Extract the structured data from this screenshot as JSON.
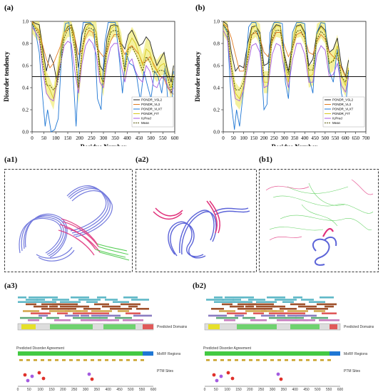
{
  "figure": {
    "panel_labels": {
      "a": "(a)",
      "b": "(b)",
      "a1": "(a1)",
      "a2": "(a2)",
      "b1": "(b1)",
      "a3": "(a3)",
      "b2": "(b2)"
    }
  },
  "chart_data": [
    {
      "id": "a",
      "type": "line",
      "xlabel": "Residue Number",
      "ylabel": "Disorder tendency",
      "xlim": [
        0,
        600
      ],
      "ylim": [
        0.0,
        1.0
      ],
      "xticks": [
        0,
        50,
        100,
        150,
        200,
        250,
        300,
        350,
        400,
        450,
        500,
        550,
        600
      ],
      "yticks": [
        0.0,
        0.2,
        0.4,
        0.6,
        0.8,
        1.0
      ],
      "threshold": 0.5,
      "legend_position": "bottom-right",
      "series": [
        {
          "name": "PONDR_VSL2",
          "color": "#222222",
          "x": [
            0,
            15,
            30,
            45,
            60,
            75,
            90,
            105,
            120,
            135,
            150,
            165,
            180,
            195,
            210,
            225,
            240,
            255,
            270,
            285,
            300,
            315,
            330,
            345,
            360,
            375,
            390,
            405,
            420,
            435,
            450,
            465,
            480,
            495,
            510,
            525,
            540,
            555,
            570,
            585,
            595
          ],
          "y": [
            1.0,
            0.98,
            0.97,
            0.75,
            0.55,
            0.7,
            0.62,
            0.45,
            0.72,
            0.9,
            0.95,
            0.97,
            0.85,
            0.58,
            0.88,
            0.97,
            0.98,
            0.97,
            0.9,
            0.6,
            0.55,
            0.85,
            0.96,
            0.97,
            0.96,
            0.8,
            0.75,
            0.88,
            0.92,
            0.85,
            0.78,
            0.8,
            0.86,
            0.82,
            0.7,
            0.6,
            0.66,
            0.72,
            0.55,
            0.45,
            0.6
          ]
        },
        {
          "name": "PONDR_VL3",
          "color": "#e07b22",
          "x": [
            0,
            15,
            30,
            45,
            60,
            75,
            90,
            105,
            120,
            135,
            150,
            165,
            180,
            195,
            210,
            225,
            240,
            255,
            270,
            285,
            300,
            315,
            330,
            345,
            360,
            375,
            390,
            405,
            420,
            435,
            450,
            465,
            480,
            495,
            510,
            525,
            540,
            555,
            570,
            585,
            595
          ],
          "y": [
            1.0,
            0.95,
            0.9,
            0.78,
            0.66,
            0.58,
            0.62,
            0.7,
            0.78,
            0.9,
            0.92,
            0.95,
            0.85,
            0.7,
            0.74,
            0.86,
            0.92,
            0.9,
            0.78,
            0.72,
            0.68,
            0.72,
            0.82,
            0.88,
            0.88,
            0.78,
            0.7,
            0.76,
            0.78,
            0.74,
            0.7,
            0.62,
            0.64,
            0.68,
            0.62,
            0.56,
            0.5,
            0.48,
            0.4,
            0.36,
            0.34
          ]
        },
        {
          "name": "PONDR_VLXT",
          "color": "#1f77d4",
          "x": [
            0,
            15,
            30,
            45,
            55,
            65,
            80,
            95,
            110,
            125,
            140,
            155,
            170,
            185,
            200,
            215,
            230,
            245,
            260,
            275,
            290,
            305,
            320,
            335,
            350,
            365,
            380,
            395,
            410,
            425,
            440,
            455,
            470,
            485,
            500,
            515,
            530,
            545,
            560,
            575,
            585,
            595
          ],
          "y": [
            0.98,
            0.9,
            0.72,
            0.3,
            0.05,
            0.2,
            0.0,
            0.02,
            0.12,
            0.75,
            0.98,
            0.99,
            0.6,
            0.05,
            0.75,
            0.99,
            0.99,
            0.99,
            0.95,
            0.3,
            0.2,
            0.8,
            0.99,
            0.99,
            0.99,
            0.7,
            0.35,
            0.72,
            0.62,
            0.6,
            0.5,
            0.28,
            0.55,
            0.42,
            0.3,
            0.55,
            0.5,
            0.35,
            0.6,
            0.15,
            0.05,
            0.55
          ]
        },
        {
          "name": "PONDR_FIT",
          "color": "#d6c71c",
          "x": [
            0,
            15,
            30,
            45,
            60,
            75,
            90,
            105,
            120,
            135,
            150,
            165,
            180,
            195,
            210,
            225,
            240,
            255,
            270,
            285,
            300,
            315,
            330,
            345,
            360,
            375,
            390,
            405,
            420,
            435,
            450,
            465,
            480,
            495,
            510,
            525,
            540,
            555,
            570,
            585,
            595
          ],
          "y": [
            0.99,
            0.95,
            0.92,
            0.7,
            0.45,
            0.38,
            0.3,
            0.5,
            0.7,
            0.9,
            0.96,
            0.96,
            0.8,
            0.35,
            0.7,
            0.93,
            0.97,
            0.96,
            0.9,
            0.55,
            0.42,
            0.75,
            0.93,
            0.96,
            0.95,
            0.8,
            0.55,
            0.78,
            0.85,
            0.8,
            0.7,
            0.6,
            0.75,
            0.72,
            0.6,
            0.55,
            0.6,
            0.62,
            0.5,
            0.4,
            0.52
          ]
        },
        {
          "name": "IUPred",
          "color": "#a45be0",
          "x": [
            0,
            15,
            30,
            45,
            60,
            75,
            90,
            105,
            120,
            135,
            150,
            165,
            180,
            195,
            210,
            225,
            240,
            255,
            270,
            285,
            300,
            315,
            330,
            345,
            360,
            375,
            390,
            405,
            420,
            435,
            450,
            465,
            480,
            495,
            510,
            525,
            540,
            555,
            570,
            585,
            595
          ],
          "y": [
            0.95,
            0.9,
            0.85,
            0.55,
            0.35,
            0.3,
            0.28,
            0.45,
            0.62,
            0.78,
            0.82,
            0.8,
            0.55,
            0.35,
            0.62,
            0.78,
            0.84,
            0.8,
            0.7,
            0.45,
            0.4,
            0.62,
            0.76,
            0.8,
            0.8,
            0.6,
            0.45,
            0.62,
            0.66,
            0.55,
            0.48,
            0.45,
            0.6,
            0.55,
            0.42,
            0.4,
            0.48,
            0.5,
            0.42,
            0.35,
            0.4
          ]
        },
        {
          "name": "Mean",
          "color": "#5a5a10",
          "dashed": true,
          "x": [
            0,
            15,
            30,
            45,
            60,
            75,
            90,
            105,
            120,
            135,
            150,
            165,
            180,
            195,
            210,
            225,
            240,
            255,
            270,
            285,
            300,
            315,
            330,
            345,
            360,
            375,
            390,
            405,
            420,
            435,
            450,
            465,
            480,
            495,
            510,
            525,
            540,
            555,
            570,
            585,
            595
          ],
          "y": [
            0.98,
            0.93,
            0.88,
            0.62,
            0.42,
            0.42,
            0.38,
            0.42,
            0.6,
            0.85,
            0.93,
            0.94,
            0.74,
            0.4,
            0.74,
            0.92,
            0.94,
            0.93,
            0.85,
            0.52,
            0.45,
            0.75,
            0.9,
            0.92,
            0.91,
            0.74,
            0.55,
            0.75,
            0.77,
            0.71,
            0.64,
            0.55,
            0.68,
            0.64,
            0.54,
            0.54,
            0.56,
            0.55,
            0.5,
            0.35,
            0.5
          ]
        }
      ]
    },
    {
      "id": "b",
      "type": "line",
      "xlabel": "Residue Number",
      "ylabel": "Disorder tendency",
      "xlim": [
        0,
        700
      ],
      "ylim": [
        0.0,
        1.0
      ],
      "xticks": [
        0,
        50,
        100,
        150,
        200,
        250,
        300,
        350,
        400,
        450,
        500,
        550,
        600,
        650,
        700
      ],
      "yticks": [
        0.0,
        0.2,
        0.4,
        0.6,
        0.8,
        1.0
      ],
      "threshold": 0.5,
      "legend_position": "bottom-right",
      "series": [
        {
          "name": "PONDR_VSL2",
          "color": "#222222",
          "x": [
            0,
            20,
            40,
            60,
            80,
            100,
            120,
            140,
            160,
            180,
            200,
            220,
            240,
            260,
            280,
            300,
            320,
            340,
            360,
            380,
            400,
            420,
            440,
            460,
            480,
            500,
            520,
            540,
            560,
            580,
            600,
            615
          ],
          "y": [
            1.0,
            0.97,
            0.72,
            0.55,
            0.6,
            0.58,
            0.8,
            0.95,
            0.96,
            0.9,
            0.6,
            0.62,
            0.92,
            0.97,
            0.96,
            0.7,
            0.55,
            0.8,
            0.96,
            0.97,
            0.9,
            0.6,
            0.66,
            0.9,
            0.96,
            0.92,
            0.72,
            0.75,
            0.85,
            0.6,
            0.5,
            0.65
          ]
        },
        {
          "name": "PONDR_VL3",
          "color": "#e07b22",
          "x": [
            0,
            20,
            40,
            60,
            80,
            100,
            120,
            140,
            160,
            180,
            200,
            220,
            240,
            260,
            280,
            300,
            320,
            340,
            360,
            380,
            400,
            420,
            440,
            460,
            480,
            500,
            520,
            540,
            560,
            580,
            600,
            615
          ],
          "y": [
            0.98,
            0.95,
            0.85,
            0.7,
            0.55,
            0.55,
            0.7,
            0.88,
            0.9,
            0.85,
            0.72,
            0.68,
            0.82,
            0.9,
            0.9,
            0.78,
            0.68,
            0.76,
            0.88,
            0.9,
            0.85,
            0.72,
            0.7,
            0.82,
            0.88,
            0.84,
            0.72,
            0.68,
            0.66,
            0.58,
            0.5,
            0.48
          ]
        },
        {
          "name": "PONDR_VLXT",
          "color": "#1f77d4",
          "x": [
            0,
            20,
            40,
            55,
            65,
            80,
            95,
            110,
            125,
            140,
            160,
            180,
            200,
            215,
            230,
            250,
            270,
            290,
            305,
            320,
            340,
            360,
            380,
            400,
            420,
            440,
            460,
            480,
            500,
            520,
            540,
            560,
            580,
            600,
            615
          ],
          "y": [
            0.97,
            0.9,
            0.25,
            0.02,
            0.2,
            0.05,
            0.3,
            0.6,
            0.95,
            0.99,
            0.99,
            0.8,
            0.2,
            0.25,
            0.9,
            0.99,
            0.99,
            0.98,
            0.45,
            0.3,
            0.9,
            0.99,
            0.99,
            0.98,
            0.5,
            0.35,
            0.9,
            0.99,
            0.98,
            0.55,
            0.45,
            0.75,
            0.35,
            0.2,
            0.55
          ]
        },
        {
          "name": "PONDR_FIT",
          "color": "#d6c71c",
          "x": [
            0,
            20,
            40,
            60,
            80,
            100,
            120,
            140,
            160,
            180,
            200,
            220,
            240,
            260,
            280,
            300,
            320,
            340,
            360,
            380,
            400,
            420,
            440,
            460,
            480,
            500,
            520,
            540,
            560,
            580,
            600,
            615
          ],
          "y": [
            0.98,
            0.92,
            0.6,
            0.35,
            0.3,
            0.42,
            0.7,
            0.93,
            0.96,
            0.88,
            0.45,
            0.45,
            0.88,
            0.96,
            0.95,
            0.65,
            0.45,
            0.8,
            0.95,
            0.96,
            0.88,
            0.5,
            0.52,
            0.88,
            0.95,
            0.9,
            0.62,
            0.65,
            0.78,
            0.5,
            0.42,
            0.58
          ]
        },
        {
          "name": "IUPred",
          "color": "#a45be0",
          "x": [
            0,
            20,
            40,
            60,
            80,
            100,
            120,
            140,
            160,
            180,
            200,
            220,
            240,
            260,
            280,
            300,
            320,
            340,
            360,
            380,
            400,
            420,
            440,
            460,
            480,
            500,
            520,
            540,
            560,
            580,
            600,
            615
          ],
          "y": [
            0.92,
            0.85,
            0.5,
            0.3,
            0.28,
            0.38,
            0.6,
            0.78,
            0.8,
            0.72,
            0.4,
            0.42,
            0.7,
            0.8,
            0.78,
            0.55,
            0.4,
            0.65,
            0.8,
            0.8,
            0.7,
            0.45,
            0.45,
            0.7,
            0.78,
            0.74,
            0.5,
            0.52,
            0.62,
            0.42,
            0.36,
            0.5
          ]
        },
        {
          "name": "Mean",
          "color": "#5a5a10",
          "dashed": true,
          "x": [
            0,
            20,
            40,
            60,
            80,
            100,
            120,
            140,
            160,
            180,
            200,
            220,
            240,
            260,
            280,
            300,
            320,
            340,
            360,
            380,
            400,
            420,
            440,
            460,
            480,
            500,
            520,
            540,
            560,
            580,
            600,
            615
          ],
          "y": [
            0.97,
            0.92,
            0.58,
            0.38,
            0.38,
            0.45,
            0.66,
            0.88,
            0.92,
            0.84,
            0.5,
            0.5,
            0.84,
            0.92,
            0.92,
            0.68,
            0.52,
            0.76,
            0.91,
            0.92,
            0.85,
            0.56,
            0.56,
            0.84,
            0.91,
            0.87,
            0.62,
            0.64,
            0.72,
            0.5,
            0.45,
            0.56
          ]
        }
      ]
    }
  ],
  "bottom_panels": {
    "a3": {
      "track_labels": [
        "Predicted Domains",
        "MoRF Regions",
        "PTM Sites"
      ],
      "disorder_bar_label": "Predicted Disorder Agreement",
      "xticks": [
        0,
        50,
        100,
        150,
        200,
        250,
        300,
        350,
        400,
        450,
        500,
        550,
        600
      ]
    },
    "b2": {
      "track_labels": [
        "Predicted Domains",
        "MoRF Regions",
        "PTM Sites"
      ],
      "disorder_bar_label": "Predicted Disorder Agreement",
      "xticks": [
        0,
        50,
        100,
        150,
        200,
        250,
        300,
        350,
        400,
        450,
        500,
        550,
        600
      ]
    }
  },
  "colors": {
    "protein_blue": "#5b63d8",
    "protein_pink": "#e0307a",
    "protein_green": "#43c943",
    "threshold_line": "#111111",
    "yellow_band": "#e6e02a"
  }
}
